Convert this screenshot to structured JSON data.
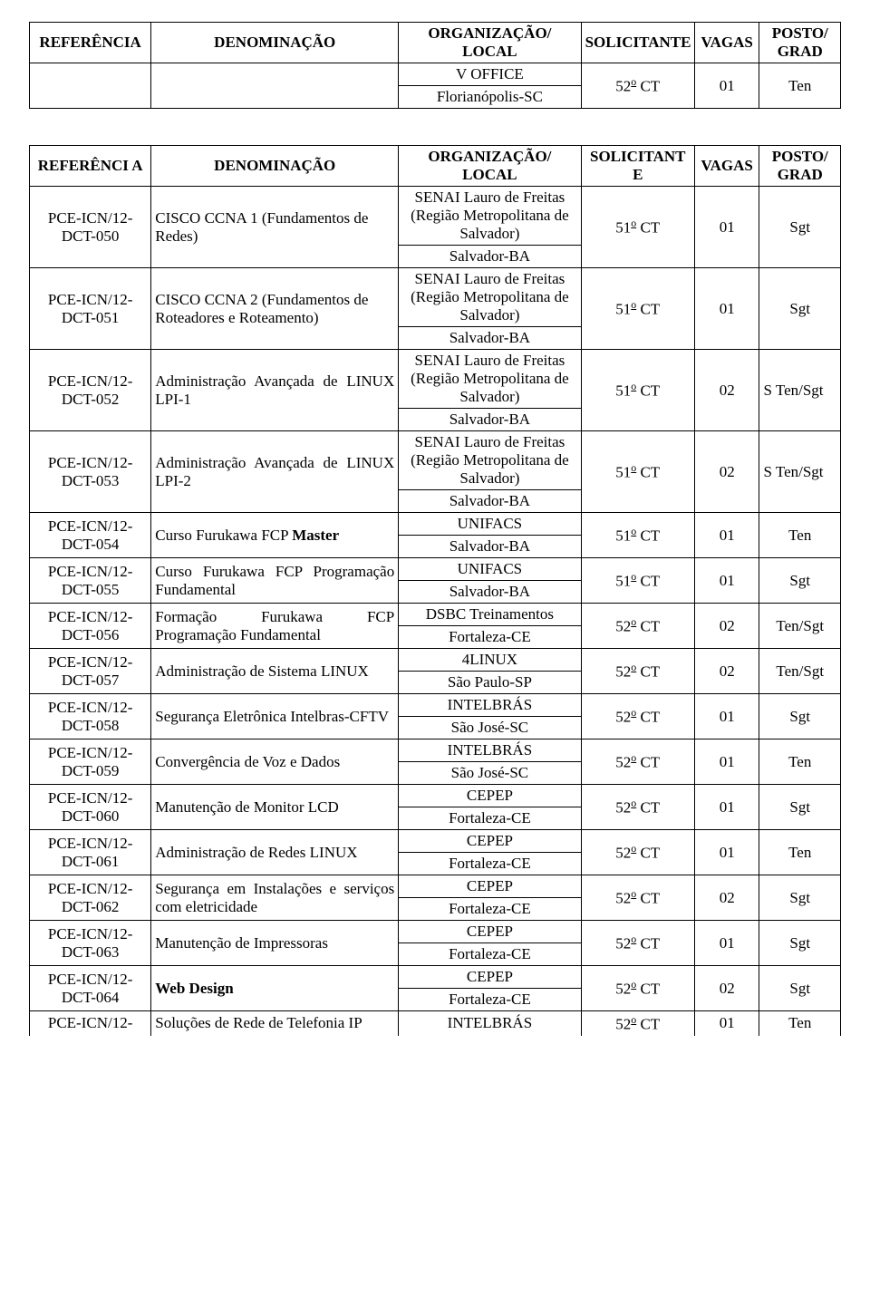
{
  "top": {
    "headers": [
      "REFERÊNCIA",
      "DENOMINAÇÃO",
      "ORGANIZAÇÃO/ LOCAL",
      "SOLICITANTE",
      "VAGAS",
      "POSTO/ GRAD"
    ],
    "row": {
      "org1": "V OFFICE",
      "org2": "Florianópolis-SC",
      "sol": "52",
      "vag": "01",
      "grad": "Ten"
    }
  },
  "main": {
    "headers": [
      "REFERÊNCI A",
      "DENOMINAÇÃO",
      "ORGANIZAÇÃO/ LOCAL",
      "SOLICITANT E",
      "VAGAS",
      "POSTO/ GRAD"
    ],
    "rows": [
      {
        "ref": "PCE-ICN/12-DCT-050",
        "den": "CISCO CCNA 1 (Fundamentos de Redes)",
        "org1": "SENAI Lauro de Freitas (Região Metropolitana de Salvador)",
        "org2": "Salvador-BA",
        "sol": "51",
        "vag": "01",
        "grad": "Sgt"
      },
      {
        "ref": "PCE-ICN/12-DCT-051",
        "den": "CISCO CCNA 2 (Fundamentos de Roteadores e Roteamento)",
        "org1": "SENAI Lauro de Freitas (Região Metropolitana de Salvador)",
        "org2": "Salvador-BA",
        "sol": "51",
        "vag": "01",
        "grad": "Sgt"
      },
      {
        "ref": "PCE-ICN/12-DCT-052",
        "den": "Administração Avançada de LINUX LPI-1",
        "den_justify": true,
        "org1": "SENAI Lauro de Freitas (Região Metropolitana de Salvador)",
        "org2": "Salvador-BA",
        "sol": "51",
        "vag": "02",
        "grad": "S Ten/Sgt"
      },
      {
        "ref": "PCE-ICN/12-DCT-053",
        "den": "Administração Avançada de LINUX LPI-2",
        "den_justify": true,
        "org1": "SENAI Lauro de Freitas (Região Metropolitana de Salvador)",
        "org2": "Salvador-BA",
        "sol": "51",
        "vag": "02",
        "grad": "S Ten/Sgt"
      },
      {
        "ref": "PCE-ICN/12-DCT-054",
        "den_html": "Curso Furukawa  FCP <span class='b'>Master</span>",
        "org1": "UNIFACS",
        "org2": "Salvador-BA",
        "sol": "51",
        "vag": "01",
        "grad": "Ten"
      },
      {
        "ref": "PCE-ICN/12-DCT-055",
        "den": "Curso Furukawa FCP Programação Fundamental",
        "den_justify": true,
        "org1": "UNIFACS",
        "org2": "Salvador-BA",
        "sol": "51",
        "vag": "01",
        "grad": "Sgt"
      },
      {
        "ref": "PCE-ICN/12-DCT-056",
        "den": "Formação Furukawa FCP Programação Fundamental",
        "den_justify": true,
        "org1": "DSBC Treinamentos",
        "org2": "Fortaleza-CE",
        "sol": "52",
        "vag": "02",
        "grad": "Ten/Sgt"
      },
      {
        "ref": "PCE-ICN/12-DCT-057",
        "den": "Administração de Sistema LINUX",
        "org1": "4LINUX",
        "org2": "São Paulo-SP",
        "sol": "52",
        "vag": "02",
        "grad": "Ten/Sgt"
      },
      {
        "ref": "PCE-ICN/12-DCT-058",
        "den": "Segurança Eletrônica Intelbras-CFTV",
        "den_justify": true,
        "org1": "INTELBRÁS",
        "org2": "São José-SC",
        "sol": "52",
        "vag": "01",
        "grad": "Sgt"
      },
      {
        "ref": "PCE-ICN/12-DCT-059",
        "den": "Convergência de Voz e Dados",
        "org1": "INTELBRÁS",
        "org2": "São José-SC",
        "sol": "52",
        "vag": "01",
        "grad": "Ten"
      },
      {
        "ref": "PCE-ICN/12-DCT-060",
        "den": "Manutenção de Monitor LCD",
        "org1": "CEPEP",
        "org2": "Fortaleza-CE",
        "sol": "52",
        "vag": "01",
        "grad": "Sgt"
      },
      {
        "ref": "PCE-ICN/12-DCT-061",
        "den": "Administração de Redes LINUX",
        "org1": "CEPEP",
        "org2": "Fortaleza-CE",
        "sol": "52",
        "vag": "01",
        "grad": "Ten"
      },
      {
        "ref": "PCE-ICN/12-DCT-062",
        "den": "Segurança em Instalações e serviços com eletricidade",
        "den_justify": true,
        "org1": "CEPEP",
        "org2": "Fortaleza-CE",
        "sol": "52",
        "vag": "02",
        "grad": "Sgt"
      },
      {
        "ref": "PCE-ICN/12-DCT-063",
        "den": "Manutenção de Impressoras",
        "org1": "CEPEP",
        "org2": "Fortaleza-CE",
        "sol": "52",
        "vag": "01",
        "grad": "Sgt"
      },
      {
        "ref": "PCE-ICN/12-DCT-064",
        "den_html": "<span class='b'>Web Design</span>",
        "org1": "CEPEP",
        "org2": "Fortaleza-CE",
        "sol": "52",
        "vag": "02",
        "grad": "Sgt"
      },
      {
        "ref": "PCE-ICN/12-",
        "den": "Soluções de Rede de Telefonia IP",
        "org1": "INTELBRÁS",
        "sol": "52",
        "vag": "01",
        "grad": "Ten",
        "single_org": true,
        "last": true
      }
    ]
  }
}
